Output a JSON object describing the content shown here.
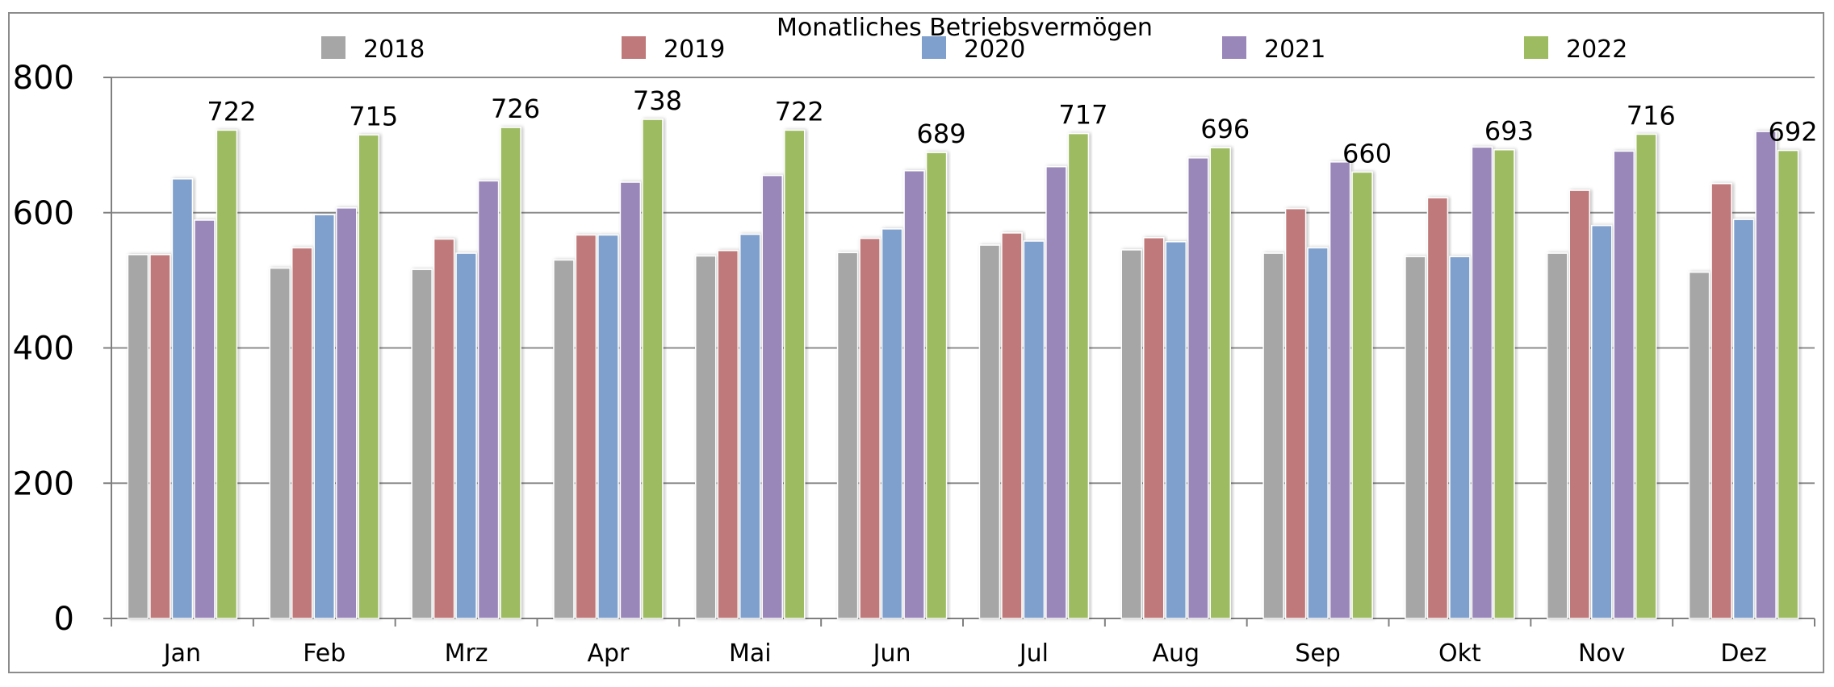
{
  "chart_data": {
    "type": "bar",
    "title": "Monatliches Betriebsvermögen",
    "xlabel": "",
    "ylabel": "",
    "ylim": [
      0,
      800
    ],
    "yticks": [
      0,
      200,
      400,
      600,
      800
    ],
    "grid": true,
    "legend_position": "top",
    "categories": [
      "Jan",
      "Feb",
      "Mrz",
      "Apr",
      "Mai",
      "Jun",
      "Jul",
      "Aug",
      "Sep",
      "Okt",
      "Nov",
      "Dez"
    ],
    "series": [
      {
        "name": "2018",
        "color": "#a6a6a6",
        "values": [
          538,
          518,
          516,
          530,
          536,
          541,
          552,
          545,
          540,
          535,
          540,
          512
        ]
      },
      {
        "name": "2019",
        "color": "#c0797a",
        "values": [
          538,
          548,
          561,
          567,
          544,
          562,
          570,
          563,
          606,
          622,
          633,
          643
        ]
      },
      {
        "name": "2020",
        "color": "#7f9fcc",
        "values": [
          650,
          597,
          540,
          567,
          568,
          576,
          558,
          557,
          548,
          535,
          581,
          590
        ]
      },
      {
        "name": "2021",
        "color": "#9987b9",
        "values": [
          589,
          607,
          647,
          645,
          655,
          662,
          668,
          681,
          675,
          697,
          691,
          720
        ]
      },
      {
        "name": "2022",
        "color": "#9dbb61",
        "values": [
          722,
          715,
          726,
          738,
          722,
          689,
          717,
          696,
          660,
          693,
          716,
          692
        ]
      }
    ],
    "data_labels_series": "2022",
    "data_labels": [
      "722",
      "715",
      "726",
      "738",
      "722",
      "689",
      "717",
      "696",
      "660",
      "693",
      "716",
      "692"
    ]
  }
}
